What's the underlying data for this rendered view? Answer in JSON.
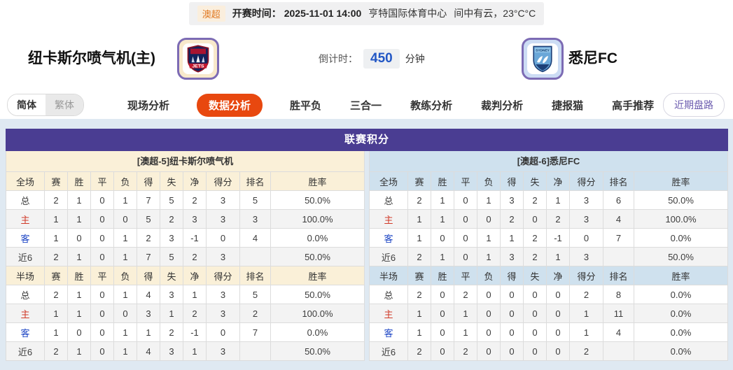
{
  "top_bar": {
    "league_badge": "澳超",
    "kickoff_label": "开赛时间：",
    "kickoff_time": "2025-11-01 14:00",
    "venue": "亨特国际体育中心",
    "weather": "间中有云，23°C°C"
  },
  "header": {
    "home_name": "纽卡斯尔喷气机(主)",
    "away_name": "悉尼FC",
    "countdown_label": "倒计时：",
    "countdown_value": "450",
    "countdown_unit": "分钟",
    "home_logo_text": "JETS",
    "away_logo_text": "SYDNEY"
  },
  "nav": {
    "lang_simplified": "简体",
    "lang_traditional": "繁体",
    "tabs": [
      {
        "label": "现场分析",
        "active": false
      },
      {
        "label": "数据分析",
        "active": true
      },
      {
        "label": "胜平负",
        "active": false
      },
      {
        "label": "三合一",
        "active": false
      },
      {
        "label": "教练分析",
        "active": false
      },
      {
        "label": "裁判分析",
        "active": false
      },
      {
        "label": "捷报猫",
        "active": false
      },
      {
        "label": "高手推荐",
        "active": false
      }
    ],
    "recent_button": "近期盘路"
  },
  "standings": {
    "title": "联赛积分",
    "home": {
      "subtitle": "[澳超-5]纽卡斯尔喷气机",
      "full": {
        "headers": [
          "全场",
          "赛",
          "胜",
          "平",
          "负",
          "得",
          "失",
          "净",
          "得分",
          "排名",
          "胜率"
        ],
        "rows": [
          {
            "label": "总",
            "type": "total",
            "cells": [
              "2",
              "1",
              "0",
              "1",
              "7",
              "5",
              "2",
              "3",
              "5",
              "50.0%"
            ]
          },
          {
            "label": "主",
            "type": "home",
            "cells": [
              "1",
              "1",
              "0",
              "0",
              "5",
              "2",
              "3",
              "3",
              "3",
              "100.0%"
            ]
          },
          {
            "label": "客",
            "type": "away",
            "cells": [
              "1",
              "0",
              "0",
              "1",
              "2",
              "3",
              "-1",
              "0",
              "4",
              "0.0%"
            ]
          },
          {
            "label": "近6",
            "type": "recent",
            "cells": [
              "2",
              "1",
              "0",
              "1",
              "7",
              "5",
              "2",
              "3",
              "",
              "50.0%"
            ]
          }
        ]
      },
      "half": {
        "headers": [
          "半场",
          "赛",
          "胜",
          "平",
          "负",
          "得",
          "失",
          "净",
          "得分",
          "排名",
          "胜率"
        ],
        "rows": [
          {
            "label": "总",
            "type": "total",
            "cells": [
              "2",
              "1",
              "0",
              "1",
              "4",
              "3",
              "1",
              "3",
              "5",
              "50.0%"
            ]
          },
          {
            "label": "主",
            "type": "home",
            "cells": [
              "1",
              "1",
              "0",
              "0",
              "3",
              "1",
              "2",
              "3",
              "2",
              "100.0%"
            ]
          },
          {
            "label": "客",
            "type": "away",
            "cells": [
              "1",
              "0",
              "0",
              "1",
              "1",
              "2",
              "-1",
              "0",
              "7",
              "0.0%"
            ]
          },
          {
            "label": "近6",
            "type": "recent",
            "cells": [
              "2",
              "1",
              "0",
              "1",
              "4",
              "3",
              "1",
              "3",
              "",
              "50.0%"
            ]
          }
        ]
      }
    },
    "away": {
      "subtitle": "[澳超-6]悉尼FC",
      "full": {
        "headers": [
          "全场",
          "赛",
          "胜",
          "平",
          "负",
          "得",
          "失",
          "净",
          "得分",
          "排名",
          "胜率"
        ],
        "rows": [
          {
            "label": "总",
            "type": "total",
            "cells": [
              "2",
              "1",
              "0",
              "1",
              "3",
              "2",
              "1",
              "3",
              "6",
              "50.0%"
            ]
          },
          {
            "label": "主",
            "type": "home",
            "cells": [
              "1",
              "1",
              "0",
              "0",
              "2",
              "0",
              "2",
              "3",
              "4",
              "100.0%"
            ]
          },
          {
            "label": "客",
            "type": "away",
            "cells": [
              "1",
              "0",
              "0",
              "1",
              "1",
              "2",
              "-1",
              "0",
              "7",
              "0.0%"
            ]
          },
          {
            "label": "近6",
            "type": "recent",
            "cells": [
              "2",
              "1",
              "0",
              "1",
              "3",
              "2",
              "1",
              "3",
              "",
              "50.0%"
            ]
          }
        ]
      },
      "half": {
        "headers": [
          "半场",
          "赛",
          "胜",
          "平",
          "负",
          "得",
          "失",
          "净",
          "得分",
          "排名",
          "胜率"
        ],
        "rows": [
          {
            "label": "总",
            "type": "total",
            "cells": [
              "2",
              "0",
              "2",
              "0",
              "0",
              "0",
              "0",
              "2",
              "8",
              "0.0%"
            ]
          },
          {
            "label": "主",
            "type": "home",
            "cells": [
              "1",
              "0",
              "1",
              "0",
              "0",
              "0",
              "0",
              "1",
              "11",
              "0.0%"
            ]
          },
          {
            "label": "客",
            "type": "away",
            "cells": [
              "1",
              "0",
              "1",
              "0",
              "0",
              "0",
              "0",
              "1",
              "4",
              "0.0%"
            ]
          },
          {
            "label": "近6",
            "type": "recent",
            "cells": [
              "2",
              "0",
              "2",
              "0",
              "0",
              "0",
              "0",
              "2",
              "",
              "0.0%"
            ]
          }
        ]
      }
    }
  },
  "colors": {
    "accent_orange": "#e8480f",
    "header_purple": "#4a3d92",
    "home_theme": "#faf0d8",
    "away_theme": "#cfe1ee",
    "countdown_blue": "#2257c5",
    "home_label_red": "#d03a28",
    "away_label_blue": "#1f47c5",
    "page_background": "#dfe9f2"
  }
}
